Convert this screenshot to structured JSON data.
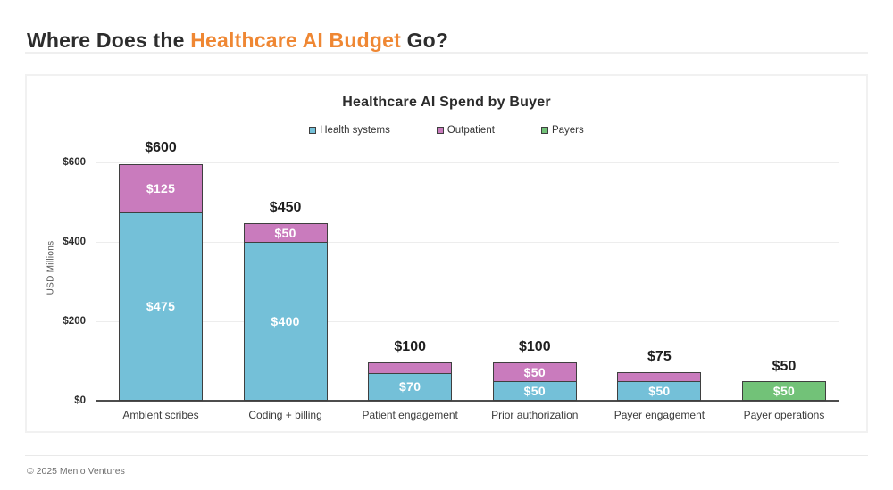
{
  "page": {
    "title_prefix": "Where Does the ",
    "title_highlight": "Healthcare AI Budget",
    "title_suffix": " Go?",
    "highlight_color": "#ef8733",
    "footer": "© 2025 Menlo Ventures"
  },
  "chart_data": {
    "type": "bar",
    "stacked": true,
    "title": "Healthcare AI Spend by Buyer",
    "ylabel": "USD Millions",
    "xlabel": "",
    "ylim": [
      0,
      600
    ],
    "yticks": [
      0,
      200,
      400,
      600
    ],
    "ytick_labels": [
      "$0",
      "$200",
      "$400",
      "$600"
    ],
    "grid": true,
    "legend_position": "top-center",
    "segment_border_color": "#3f3f3f",
    "categories": [
      "Ambient scribes",
      "Coding + billing",
      "Patient engagement",
      "Prior authorization",
      "Payer engagement",
      "Payer operations"
    ],
    "series": [
      {
        "name": "Health systems",
        "color": "#74c0d8",
        "values": [
          475,
          400,
          70,
          50,
          50,
          0
        ],
        "labels": [
          "$475",
          "$400",
          "$70",
          "$50",
          "$50",
          ""
        ]
      },
      {
        "name": "Outpatient",
        "color": "#c97bbd",
        "values": [
          125,
          50,
          30,
          50,
          25,
          0
        ],
        "labels": [
          "$125",
          "$50",
          "",
          "$50",
          "",
          ""
        ]
      },
      {
        "name": "Payers",
        "color": "#72c278",
        "values": [
          0,
          0,
          0,
          0,
          0,
          50
        ],
        "labels": [
          "",
          "",
          "",
          "",
          "",
          "$50"
        ]
      }
    ],
    "totals": [
      600,
      450,
      100,
      100,
      75,
      50
    ],
    "total_labels": [
      "$600",
      "$450",
      "$100",
      "$100",
      "$75",
      "$50"
    ]
  }
}
